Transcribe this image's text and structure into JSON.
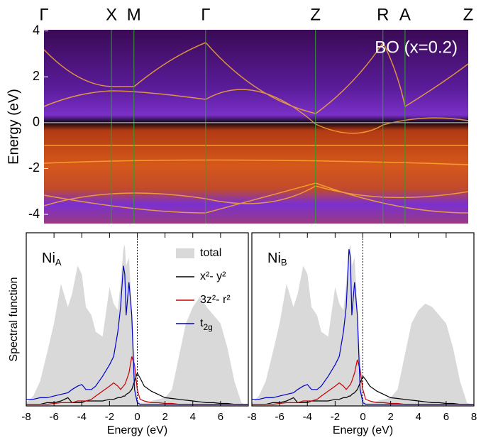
{
  "chart_data": [
    {
      "type": "bandstructure",
      "ylabel": "Energy (eV)",
      "annotation": "BO (x=0.2)",
      "xlim": [
        0,
        1
      ],
      "xticks": [
        {
          "value": 0,
          "label": "Γ"
        },
        {
          "value": 0.159,
          "label": "X"
        },
        {
          "value": 0.212,
          "label": "M"
        },
        {
          "value": 0.381,
          "label": "Γ"
        },
        {
          "value": 0.64,
          "label": "Z"
        },
        {
          "value": 0.799,
          "label": "R"
        },
        {
          "value": 0.851,
          "label": "A"
        },
        {
          "value": 1,
          "label": "Z"
        }
      ],
      "ylim": [
        -4.4,
        4.05
      ],
      "yticks": [
        -4,
        -2,
        0,
        2,
        4
      ]
    },
    {
      "type": "line",
      "label": "NiA",
      "xlabel": "Energy (eV)",
      "ylabel": "Spectral function",
      "legend": true,
      "vline": 0,
      "xlim": [
        -8,
        8
      ],
      "xticks": [
        -8,
        -6,
        -4,
        -2,
        0,
        2,
        4,
        6
      ],
      "ylim": [
        0,
        1.05
      ],
      "x": [
        -8,
        -7.5,
        -7,
        -6.5,
        -6,
        -5.5,
        -5,
        -4.7,
        -4.3,
        -4,
        -3.7,
        -3.3,
        -3,
        -2.5,
        -2,
        -1.7,
        -1.4,
        -1.2,
        -1,
        -0.9,
        -0.8,
        -0.6,
        -0.4,
        -0.2,
        0,
        0.2,
        0.5,
        1,
        1.5,
        2,
        2.5,
        3,
        3.5,
        4,
        4.5,
        5,
        5.5,
        6,
        6.5,
        7,
        7.5,
        8
      ],
      "series": [
        {
          "name": "total",
          "color": "#d9d9d9",
          "fill": true,
          "values": [
            0.02,
            0.06,
            0.15,
            0.32,
            0.5,
            0.74,
            0.6,
            0.68,
            0.85,
            0.8,
            0.6,
            0.55,
            0.45,
            0.42,
            0.72,
            0.62,
            0.58,
            0.75,
            0.95,
            0.98,
            0.85,
            0.9,
            0.6,
            0.3,
            0.05,
            0.02,
            0.02,
            0.03,
            0.04,
            0.05,
            0.1,
            0.3,
            0.5,
            0.6,
            0.66,
            0.6,
            0.55,
            0.5,
            0.35,
            0.15,
            0.02,
            0
          ]
        },
        {
          "name": "x²- y²",
          "color": "#000000",
          "values": [
            0.01,
            0.01,
            0.01,
            0.02,
            0.02,
            0.03,
            0.05,
            0.02,
            0.02,
            0.02,
            0.03,
            0.03,
            0.03,
            0.03,
            0.04,
            0.04,
            0.05,
            0.05,
            0.06,
            0.06,
            0.07,
            0.08,
            0.1,
            0.15,
            0.2,
            0.17,
            0.12,
            0.09,
            0.07,
            0.05,
            0.045,
            0.04,
            0.035,
            0.03,
            0.025,
            0.02,
            0.02,
            0.015,
            0.015,
            0.01,
            0.01,
            0.01
          ]
        },
        {
          "name": "3z²- r²",
          "color": "#cc0000",
          "values": [
            0.01,
            0.01,
            0.01,
            0.01,
            0.015,
            0.02,
            0.02,
            0.02,
            0.03,
            0.03,
            0.03,
            0.04,
            0.06,
            0.09,
            0.12,
            0.14,
            0.12,
            0.1,
            0.12,
            0.13,
            0.15,
            0.2,
            0.3,
            0.25,
            0.1,
            0.04,
            0.03,
            0.02,
            0.02,
            0.015,
            0.015,
            0.01,
            0.01,
            0.01,
            0.01,
            0.01,
            0.01,
            0.01,
            0.01,
            0.01,
            0.01,
            0.01
          ]
        },
        {
          "name": "t2g",
          "color": "#0000cc",
          "values": [
            0.04,
            0.04,
            0.05,
            0.05,
            0.06,
            0.07,
            0.08,
            0.1,
            0.12,
            0.13,
            0.1,
            0.1,
            0.12,
            0.18,
            0.25,
            0.3,
            0.45,
            0.6,
            0.85,
            0.8,
            0.55,
            0.75,
            0.55,
            0.1,
            0.02,
            0.01,
            0.01,
            0.01,
            0.01,
            0.01,
            0.01,
            0.01,
            0.01,
            0.01,
            0.01,
            0.01,
            0.01,
            0.01,
            0.01,
            0.01,
            0.01,
            0.01
          ]
        }
      ]
    },
    {
      "type": "line",
      "label": "NiB",
      "xlabel": "Energy (eV)",
      "legend": false,
      "vline": 0,
      "xlim": [
        -8,
        8
      ],
      "xticks": [
        -8,
        -6,
        -4,
        -2,
        0,
        2,
        4,
        6,
        8
      ],
      "ylim": [
        0,
        1.05
      ],
      "x": [
        -8,
        -7.5,
        -7,
        -6.5,
        -6,
        -5.5,
        -5,
        -4.7,
        -4.3,
        -4,
        -3.7,
        -3.3,
        -3,
        -2.5,
        -2,
        -1.7,
        -1.4,
        -1.2,
        -1,
        -0.9,
        -0.8,
        -0.6,
        -0.4,
        -0.2,
        0,
        0.2,
        0.5,
        1,
        1.5,
        2,
        2.5,
        3,
        3.5,
        4,
        4.5,
        5,
        5.5,
        6,
        6.5,
        7,
        7.5,
        8
      ],
      "series": [
        {
          "color": "#d9d9d9",
          "fill": true,
          "values": [
            0.02,
            0.06,
            0.15,
            0.32,
            0.5,
            0.74,
            0.6,
            0.68,
            0.85,
            0.8,
            0.6,
            0.55,
            0.45,
            0.42,
            0.72,
            0.62,
            0.58,
            0.75,
            0.95,
            0.98,
            0.85,
            0.9,
            0.6,
            0.3,
            0.05,
            0.02,
            0.02,
            0.03,
            0.04,
            0.05,
            0.1,
            0.3,
            0.5,
            0.58,
            0.62,
            0.6,
            0.55,
            0.5,
            0.35,
            0.15,
            0.02,
            0
          ]
        },
        {
          "color": "#000000",
          "values": [
            0.01,
            0.01,
            0.01,
            0.02,
            0.02,
            0.03,
            0.05,
            0.02,
            0.02,
            0.02,
            0.03,
            0.03,
            0.03,
            0.03,
            0.04,
            0.04,
            0.05,
            0.05,
            0.06,
            0.06,
            0.07,
            0.08,
            0.1,
            0.14,
            0.18,
            0.16,
            0.12,
            0.09,
            0.07,
            0.05,
            0.045,
            0.04,
            0.035,
            0.03,
            0.025,
            0.02,
            0.02,
            0.015,
            0.015,
            0.01,
            0.01,
            0.01
          ]
        },
        {
          "color": "#cc0000",
          "values": [
            0.01,
            0.01,
            0.01,
            0.01,
            0.015,
            0.02,
            0.02,
            0.02,
            0.03,
            0.03,
            0.03,
            0.04,
            0.06,
            0.09,
            0.12,
            0.14,
            0.12,
            0.1,
            0.12,
            0.13,
            0.15,
            0.2,
            0.28,
            0.22,
            0.1,
            0.04,
            0.03,
            0.02,
            0.02,
            0.015,
            0.015,
            0.01,
            0.01,
            0.01,
            0.01,
            0.01,
            0.01,
            0.01,
            0.01,
            0.01,
            0.01,
            0.01
          ]
        },
        {
          "color": "#0000cc",
          "values": [
            0.04,
            0.04,
            0.05,
            0.05,
            0.06,
            0.07,
            0.08,
            0.1,
            0.12,
            0.13,
            0.1,
            0.1,
            0.12,
            0.18,
            0.25,
            0.3,
            0.45,
            0.6,
            0.95,
            0.9,
            0.55,
            0.75,
            0.55,
            0.1,
            0.02,
            0.01,
            0.01,
            0.01,
            0.01,
            0.01,
            0.01,
            0.01,
            0.01,
            0.01,
            0.01,
            0.01,
            0.01,
            0.01,
            0.01,
            0.01,
            0.01,
            0.01
          ]
        }
      ]
    }
  ]
}
